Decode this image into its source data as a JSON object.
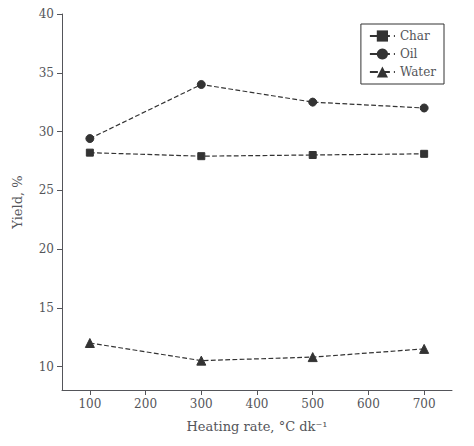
{
  "chart_data": {
    "type": "line",
    "x": [
      100,
      300,
      500,
      700
    ],
    "series": [
      {
        "name": "Char",
        "color": "#333333",
        "marker": "square",
        "line_style": "dashed",
        "values": [
          28.2,
          27.9,
          28.0,
          28.1
        ]
      },
      {
        "name": "Oil",
        "color": "#333333",
        "marker": "circle",
        "line_style": "dashed",
        "values": [
          29.4,
          34.0,
          32.5,
          32.0
        ]
      },
      {
        "name": "Water",
        "color": "#333333",
        "marker": "triangle",
        "line_style": "dashed",
        "values": [
          12.0,
          10.5,
          10.8,
          11.5
        ]
      }
    ],
    "xlabel": "Heating rate, °C dk⁻¹",
    "ylabel": "Yield, %",
    "xlim": [
      50,
      750
    ],
    "ylim": [
      8,
      40
    ],
    "xticks": [
      100,
      200,
      300,
      400,
      500,
      600,
      700
    ],
    "yticks": [
      10,
      15,
      20,
      25,
      30,
      35,
      40
    ],
    "grid": false,
    "legend": "upper right"
  }
}
